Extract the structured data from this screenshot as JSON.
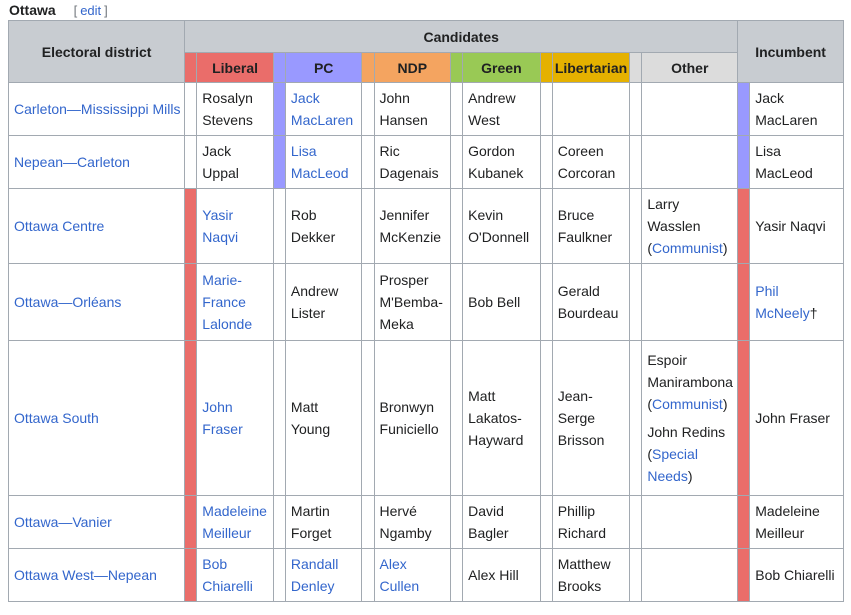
{
  "section": {
    "title": "Ottawa",
    "edit_label": "edit"
  },
  "colors": {
    "liberal": "#ea6d6a",
    "pc": "#9999ff",
    "ndp": "#f4a460",
    "green": "#99c955",
    "libertarian": "#e5b100",
    "other": "#dcdcdc",
    "header_bg": "#c8ccd1",
    "link": "#3366cc"
  },
  "table": {
    "district_header": "Electoral district",
    "candidates_header": "Candidates",
    "incumbent_header": "Incumbent",
    "parties": [
      "Liberal",
      "PC",
      "NDP",
      "Green",
      "Libertarian",
      "Other"
    ],
    "rows": [
      {
        "district": "Carleton—Mississippi Mills",
        "liberal": [
          "Rosalyn",
          "Stevens"
        ],
        "pc": [
          "Jack",
          "MacLaren"
        ],
        "ndp": [
          "John",
          "Hansen"
        ],
        "green": [
          "Andrew",
          "West"
        ],
        "libertarian": [],
        "other": [],
        "incumbent": [
          "Jack",
          "MacLaren"
        ]
      },
      {
        "district": "Nepean—Carleton",
        "liberal": [
          "Jack",
          "Uppal"
        ],
        "pc": [
          "Lisa",
          "MacLeod"
        ],
        "ndp": [
          "Ric",
          "Dagenais"
        ],
        "green": [
          "Gordon",
          "Kubanek"
        ],
        "libertarian": [
          "Coreen",
          "Corcoran"
        ],
        "other": [],
        "incumbent": [
          "Lisa",
          "MacLeod"
        ]
      },
      {
        "district": "Ottawa Centre",
        "liberal": [
          "Yasir",
          "Naqvi"
        ],
        "pc": [
          "Rob",
          "Dekker"
        ],
        "ndp": [
          "Jennifer",
          "McKenzie"
        ],
        "green": [
          "Kevin",
          "O'Donnell"
        ],
        "libertarian": [
          "Bruce",
          "Faulkner"
        ],
        "other_a": {
          "name": [
            "Larry",
            "Wasslen"
          ],
          "party": "Communist"
        },
        "incumbent": [
          "Yasir Naqvi"
        ]
      },
      {
        "district": "Ottawa—Orléans",
        "liberal": [
          "Marie-",
          "France",
          "Lalonde"
        ],
        "pc": [
          "Andrew",
          "Lister"
        ],
        "ndp": [
          "Prosper",
          "M'Bemba-",
          "Meka"
        ],
        "green": [
          "Bob Bell"
        ],
        "libertarian": [
          "Gerald",
          "Bourdeau"
        ],
        "other": [],
        "incumbent_link": [
          "Phil",
          "McNeely"
        ],
        "incumbent_mark": "†"
      },
      {
        "district": "Ottawa South",
        "liberal": [
          "John",
          "Fraser"
        ],
        "pc": [
          "Matt",
          "Young"
        ],
        "ndp": [
          "Bronwyn",
          "Funiciello"
        ],
        "green": [
          "Matt",
          "Lakatos-",
          "Hayward"
        ],
        "libertarian": [
          "Jean-",
          "Serge",
          "Brisson"
        ],
        "other_a": {
          "name": [
            "Espoir",
            "Manirambona"
          ],
          "party": "Communist"
        },
        "other_b": {
          "name": [
            "John Redins"
          ],
          "party_lines": [
            "Special",
            "Needs"
          ]
        },
        "incumbent": [
          "John Fraser"
        ]
      },
      {
        "district": "Ottawa—Vanier",
        "liberal": [
          "Madeleine",
          "Meilleur"
        ],
        "pc": [
          "Martin",
          "Forget"
        ],
        "ndp": [
          "Hervé",
          "Ngamby"
        ],
        "green": [
          "David",
          "Bagler"
        ],
        "libertarian": [
          "Phillip",
          "Richard"
        ],
        "other": [],
        "incumbent": [
          "Madeleine",
          "Meilleur"
        ]
      },
      {
        "district": "Ottawa West—Nepean",
        "liberal": [
          "Bob",
          "Chiarelli"
        ],
        "pc": [
          "Randall",
          "Denley"
        ],
        "ndp": [
          "Alex",
          "Cullen"
        ],
        "green": [
          "Alex Hill"
        ],
        "libertarian": [
          "Matthew",
          "Brooks"
        ],
        "other": [],
        "incumbent": [
          "Bob Chiarelli"
        ]
      }
    ]
  }
}
